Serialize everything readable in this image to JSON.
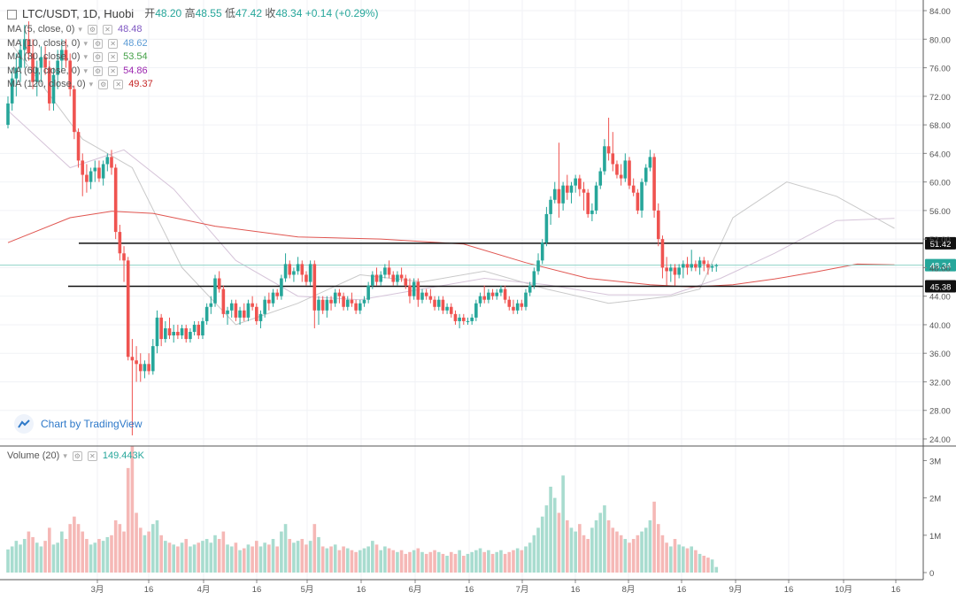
{
  "header": {
    "symbol_title": "LTC/USDT, 1D, Huobi",
    "open_label": "开",
    "open": "48.20",
    "high_label": "高",
    "high": "48.55",
    "low_label": "低",
    "low": "47.42",
    "close_label": "收",
    "close": "48.34",
    "change": "+0.14 (+0.29%)"
  },
  "moving_averages": [
    {
      "label": "MA (5, close, 0)",
      "value": "48.48",
      "color": "#7e57c2"
    },
    {
      "label": "MA (10, close, 0)",
      "value": "48.62",
      "color": "#5b9bd5"
    },
    {
      "label": "MA (30, close, 0)",
      "value": "53.54",
      "color": "#43a047"
    },
    {
      "label": "MA (60, close, 0)",
      "value": "54.86",
      "color": "#9c27b0"
    },
    {
      "label": "MA (120, close, 0)",
      "value": "49.37",
      "color": "#c62828"
    }
  ],
  "volume": {
    "label": "Volume (20)",
    "value": "149.443K"
  },
  "watermark": "Chart by TradingView",
  "colors": {
    "up": "#26a69a",
    "down": "#ef5350",
    "up_vol": "#a8dccf",
    "down_vol": "#f5b8b6",
    "grid": "#e0e3eb"
  },
  "chart_data": {
    "type": "candlestick",
    "symbol": "LTC/USDT",
    "interval": "1D",
    "price_axis": {
      "ticks": [
        "84.00",
        "80.00",
        "76.00",
        "72.00",
        "68.00",
        "64.00",
        "60.00",
        "56.00",
        "52.00",
        "48.00",
        "44.00",
        "40.00",
        "36.00",
        "32.00",
        "28.00",
        "24.00"
      ],
      "range": [
        24,
        84.5
      ]
    },
    "volume_axis": {
      "ticks": [
        "3M",
        "2M",
        "1M",
        "0"
      ],
      "range": [
        0,
        3.2
      ]
    },
    "time_axis": {
      "ticks": [
        "3月",
        "16",
        "4月",
        "16",
        "5月",
        "16",
        "6月",
        "16",
        "7月",
        "16",
        "8月",
        "16",
        "9月",
        "16",
        "10月",
        "16"
      ]
    },
    "horizontal_lines": [
      51.42,
      45.38
    ],
    "horizontal_line_labels": [
      "51.42",
      "45.38"
    ],
    "last_price": 48.34,
    "last_price_label": "48.34",
    "ma120_path": [
      [
        0,
        51.5
      ],
      [
        15,
        55.0
      ],
      [
        25,
        55.9
      ],
      [
        35,
        55.6
      ],
      [
        50,
        53.8
      ],
      [
        70,
        52.3
      ],
      [
        90,
        52.0
      ],
      [
        110,
        51.3
      ],
      [
        125,
        48.7
      ],
      [
        140,
        46.5
      ],
      [
        155,
        45.6
      ],
      [
        165,
        45.3
      ],
      [
        175,
        45.6
      ],
      [
        185,
        46.4
      ],
      [
        195,
        47.4
      ],
      [
        205,
        48.5
      ],
      [
        214,
        48.4
      ]
    ],
    "ma60_path": [
      [
        0,
        70
      ],
      [
        15,
        62
      ],
      [
        28,
        64.5
      ],
      [
        40,
        59
      ],
      [
        55,
        49
      ],
      [
        70,
        44
      ],
      [
        85,
        43.5
      ],
      [
        100,
        45
      ],
      [
        115,
        46.5
      ],
      [
        130,
        45.6
      ],
      [
        145,
        44.2
      ],
      [
        160,
        44.2
      ],
      [
        172,
        46.5
      ],
      [
        185,
        50
      ],
      [
        200,
        54.6
      ],
      [
        214,
        54.9
      ]
    ],
    "ma30_path": [
      [
        0,
        80
      ],
      [
        18,
        66
      ],
      [
        30,
        62
      ],
      [
        42,
        48
      ],
      [
        55,
        40
      ],
      [
        70,
        43
      ],
      [
        85,
        47
      ],
      [
        100,
        46
      ],
      [
        115,
        47.5
      ],
      [
        130,
        45
      ],
      [
        145,
        43
      ],
      [
        160,
        44
      ],
      [
        167,
        45
      ],
      [
        175,
        55
      ],
      [
        188,
        60
      ],
      [
        200,
        58
      ],
      [
        214,
        53.5
      ]
    ],
    "ohlc": [
      [
        68.0,
        72.0,
        67.5,
        71.0
      ],
      [
        71.0,
        76.0,
        70.0,
        74.5
      ],
      [
        74.5,
        78.0,
        72.0,
        76.0
      ],
      [
        76.0,
        80.0,
        74.0,
        78.5
      ],
      [
        78.5,
        82.0,
        76.0,
        80.0
      ],
      [
        80.0,
        82.5,
        77.0,
        78.0
      ],
      [
        78.0,
        80.0,
        73.0,
        74.0
      ],
      [
        74.0,
        77.0,
        72.0,
        76.0
      ],
      [
        76.0,
        79.0,
        74.0,
        77.5
      ],
      [
        77.5,
        79.0,
        75.0,
        76.0
      ],
      [
        76.0,
        77.0,
        70.0,
        71.0
      ],
      [
        71.0,
        76.0,
        70.0,
        75.0
      ],
      [
        75.0,
        78.5,
        73.0,
        77.0
      ],
      [
        77.0,
        80.0,
        75.5,
        78.5
      ],
      [
        78.5,
        80.0,
        76.0,
        77.0
      ],
      [
        77.0,
        78.0,
        72.0,
        73.0
      ],
      [
        73.0,
        73.5,
        66.0,
        67.0
      ],
      [
        67.0,
        67.5,
        62.0,
        63.0
      ],
      [
        63.0,
        64.0,
        58.0,
        61.0
      ],
      [
        61.0,
        62.5,
        58.5,
        60.0
      ],
      [
        60.0,
        62.0,
        59.0,
        61.5
      ],
      [
        61.5,
        63.0,
        60.0,
        62.0
      ],
      [
        62.0,
        63.0,
        60.0,
        60.5
      ],
      [
        60.5,
        63.0,
        59.5,
        62.5
      ],
      [
        62.5,
        64.0,
        61.5,
        63.5
      ],
      [
        63.5,
        64.5,
        61.0,
        62.0
      ],
      [
        62.0,
        62.5,
        52.0,
        53.0
      ],
      [
        53.0,
        54.0,
        49.0,
        50.0
      ],
      [
        50.0,
        51.0,
        46.0,
        49.0
      ],
      [
        49.0,
        49.5,
        35.0,
        35.5
      ],
      [
        35.5,
        38.0,
        24.5,
        35.0
      ],
      [
        35.0,
        37.0,
        32.0,
        34.5
      ],
      [
        34.5,
        36.0,
        32.0,
        33.5
      ],
      [
        33.5,
        35.0,
        32.5,
        34.5
      ],
      [
        34.5,
        36.0,
        33.0,
        33.5
      ],
      [
        33.5,
        38.0,
        33.0,
        37.0
      ],
      [
        37.0,
        42.0,
        36.0,
        41.0
      ],
      [
        41.0,
        41.5,
        37.0,
        38.0
      ],
      [
        38.0,
        40.5,
        37.5,
        39.5
      ],
      [
        39.5,
        41.0,
        38.0,
        38.5
      ],
      [
        38.5,
        40.0,
        37.5,
        39.0
      ],
      [
        39.0,
        40.0,
        38.0,
        38.5
      ],
      [
        38.5,
        40.0,
        38.0,
        39.5
      ],
      [
        39.5,
        40.0,
        37.5,
        38.0
      ],
      [
        38.0,
        39.5,
        37.5,
        39.0
      ],
      [
        39.0,
        40.5,
        38.5,
        40.0
      ],
      [
        40.0,
        40.5,
        38.0,
        38.5
      ],
      [
        38.5,
        41.0,
        38.0,
        40.5
      ],
      [
        40.5,
        43.0,
        40.0,
        42.5
      ],
      [
        42.5,
        44.0,
        41.5,
        43.0
      ],
      [
        43.0,
        47.0,
        42.5,
        46.5
      ],
      [
        46.5,
        47.5,
        44.5,
        45.0
      ],
      [
        45.0,
        45.5,
        41.0,
        41.5
      ],
      [
        41.5,
        42.5,
        40.0,
        42.0
      ],
      [
        42.0,
        43.5,
        41.0,
        43.0
      ],
      [
        43.0,
        43.5,
        40.5,
        41.0
      ],
      [
        41.0,
        42.5,
        40.0,
        42.0
      ],
      [
        42.0,
        43.0,
        40.5,
        41.0
      ],
      [
        41.0,
        43.5,
        40.5,
        43.0
      ],
      [
        43.0,
        44.0,
        42.0,
        42.5
      ],
      [
        42.5,
        43.0,
        40.0,
        40.5
      ],
      [
        40.5,
        42.0,
        39.5,
        41.5
      ],
      [
        41.5,
        44.0,
        41.0,
        43.5
      ],
      [
        43.5,
        44.5,
        42.0,
        43.0
      ],
      [
        43.0,
        45.0,
        42.5,
        44.5
      ],
      [
        44.5,
        45.0,
        43.5,
        44.0
      ],
      [
        44.0,
        47.0,
        43.5,
        46.5
      ],
      [
        46.5,
        50.0,
        46.0,
        48.5
      ],
      [
        48.5,
        49.0,
        46.5,
        47.0
      ],
      [
        47.0,
        48.0,
        46.0,
        47.5
      ],
      [
        47.5,
        49.5,
        47.0,
        48.5
      ],
      [
        48.5,
        49.0,
        46.0,
        47.0
      ],
      [
        47.0,
        47.5,
        45.5,
        46.0
      ],
      [
        46.0,
        49.0,
        45.5,
        48.5
      ],
      [
        48.5,
        49.0,
        39.5,
        42.0
      ],
      [
        42.0,
        44.0,
        40.0,
        43.5
      ],
      [
        43.5,
        44.0,
        41.5,
        42.0
      ],
      [
        42.0,
        44.0,
        41.0,
        43.5
      ],
      [
        43.5,
        44.0,
        42.0,
        43.0
      ],
      [
        43.0,
        45.0,
        42.5,
        44.5
      ],
      [
        44.5,
        45.0,
        43.0,
        44.0
      ],
      [
        44.0,
        44.5,
        42.0,
        42.5
      ],
      [
        42.5,
        44.0,
        42.0,
        43.5
      ],
      [
        43.5,
        44.5,
        42.5,
        43.0
      ],
      [
        43.0,
        43.5,
        41.5,
        42.0
      ],
      [
        42.0,
        43.5,
        41.5,
        43.0
      ],
      [
        43.0,
        44.0,
        42.5,
        43.5
      ],
      [
        43.5,
        46.0,
        43.0,
        45.5
      ],
      [
        45.5,
        47.5,
        45.0,
        47.0
      ],
      [
        47.0,
        48.0,
        45.5,
        46.0
      ],
      [
        46.0,
        47.5,
        45.5,
        47.0
      ],
      [
        47.0,
        48.5,
        46.5,
        48.0
      ],
      [
        48.0,
        49.0,
        46.5,
        47.0
      ],
      [
        47.0,
        47.5,
        45.5,
        46.0
      ],
      [
        46.0,
        47.5,
        45.5,
        47.0
      ],
      [
        47.0,
        48.0,
        46.0,
        46.5
      ],
      [
        46.5,
        47.0,
        45.0,
        45.5
      ],
      [
        45.5,
        46.5,
        43.0,
        44.0
      ],
      [
        44.0,
        46.5,
        43.5,
        46.0
      ],
      [
        46.0,
        46.5,
        42.5,
        43.5
      ],
      [
        43.5,
        45.0,
        43.0,
        44.5
      ],
      [
        44.5,
        45.0,
        43.5,
        44.0
      ],
      [
        44.0,
        45.0,
        43.0,
        43.5
      ],
      [
        43.5,
        44.0,
        42.0,
        42.5
      ],
      [
        42.5,
        44.0,
        42.0,
        43.5
      ],
      [
        43.5,
        44.0,
        41.5,
        42.0
      ],
      [
        42.0,
        43.0,
        41.5,
        42.5
      ],
      [
        42.5,
        43.0,
        41.0,
        41.5
      ],
      [
        41.5,
        42.0,
        40.0,
        40.5
      ],
      [
        40.5,
        41.5,
        39.5,
        41.0
      ],
      [
        41.0,
        41.5,
        40.0,
        40.5
      ],
      [
        40.5,
        41.0,
        40.0,
        40.5
      ],
      [
        40.5,
        41.5,
        40.0,
        41.0
      ],
      [
        41.0,
        43.5,
        40.5,
        43.0
      ],
      [
        43.0,
        44.5,
        42.5,
        44.0
      ],
      [
        44.0,
        45.5,
        43.0,
        43.5
      ],
      [
        43.5,
        45.0,
        43.0,
        44.5
      ],
      [
        44.5,
        45.0,
        43.5,
        44.0
      ],
      [
        44.0,
        45.0,
        43.5,
        44.5
      ],
      [
        44.5,
        45.5,
        44.0,
        45.0
      ],
      [
        45.0,
        45.5,
        43.0,
        43.5
      ],
      [
        43.5,
        44.0,
        42.0,
        42.5
      ],
      [
        42.5,
        43.5,
        41.5,
        42.0
      ],
      [
        42.0,
        43.5,
        41.5,
        43.0
      ],
      [
        43.0,
        43.5,
        42.0,
        42.5
      ],
      [
        42.5,
        45.0,
        42.0,
        44.5
      ],
      [
        44.5,
        46.0,
        44.0,
        45.5
      ],
      [
        45.5,
        48.0,
        45.0,
        47.5
      ],
      [
        47.5,
        50.0,
        47.0,
        49.0
      ],
      [
        49.0,
        52.0,
        48.5,
        51.5
      ],
      [
        51.5,
        56.5,
        51.0,
        55.5
      ],
      [
        55.5,
        58.0,
        54.0,
        57.5
      ],
      [
        57.5,
        60.0,
        57.0,
        59.0
      ],
      [
        59.0,
        65.5,
        55.0,
        57.0
      ],
      [
        57.0,
        60.0,
        56.0,
        59.5
      ],
      [
        59.5,
        61.0,
        57.5,
        58.5
      ],
      [
        58.5,
        60.0,
        57.0,
        59.5
      ],
      [
        59.5,
        61.0,
        58.5,
        60.5
      ],
      [
        60.5,
        61.0,
        58.0,
        59.0
      ],
      [
        59.0,
        60.0,
        56.0,
        58.5
      ],
      [
        58.5,
        59.0,
        55.0,
        55.5
      ],
      [
        55.5,
        57.0,
        54.5,
        56.0
      ],
      [
        56.0,
        60.0,
        55.5,
        59.5
      ],
      [
        59.5,
        62.0,
        59.0,
        61.5
      ],
      [
        61.5,
        66.0,
        61.0,
        65.0
      ],
      [
        65.0,
        69.0,
        63.0,
        64.0
      ],
      [
        64.0,
        67.0,
        61.5,
        62.5
      ],
      [
        62.5,
        63.0,
        60.5,
        61.0
      ],
      [
        61.0,
        62.5,
        59.5,
        60.5
      ],
      [
        60.5,
        64.0,
        60.0,
        63.0
      ],
      [
        63.0,
        63.5,
        59.0,
        59.5
      ],
      [
        59.5,
        60.5,
        58.0,
        58.5
      ],
      [
        58.5,
        59.0,
        55.5,
        56.0
      ],
      [
        56.0,
        60.5,
        55.0,
        60.0
      ],
      [
        60.0,
        62.5,
        59.5,
        62.0
      ],
      [
        62.0,
        64.5,
        61.5,
        63.5
      ],
      [
        63.5,
        64.0,
        55.0,
        56.0
      ],
      [
        56.0,
        57.0,
        51.0,
        52.0
      ],
      [
        52.0,
        52.5,
        46.5,
        48.0
      ],
      [
        48.0,
        49.5,
        45.5,
        47.5
      ],
      [
        47.5,
        48.5,
        46.0,
        48.0
      ],
      [
        48.0,
        48.5,
        45.5,
        47.0
      ],
      [
        47.0,
        48.5,
        46.5,
        48.0
      ],
      [
        48.0,
        49.0,
        46.5,
        48.5
      ],
      [
        48.5,
        49.5,
        47.0,
        48.0
      ],
      [
        48.0,
        50.5,
        47.5,
        48.5
      ],
      [
        48.5,
        49.0,
        47.5,
        48.0
      ],
      [
        48.0,
        49.5,
        47.0,
        49.0
      ],
      [
        49.0,
        49.5,
        47.5,
        48.5
      ],
      [
        48.5,
        49.0,
        47.0,
        48.0
      ],
      [
        48.0,
        48.5,
        47.42,
        48.2
      ],
      [
        48.2,
        48.55,
        47.42,
        48.34
      ]
    ],
    "volumes": [
      0.62,
      0.7,
      0.85,
      0.75,
      0.9,
      1.1,
      0.95,
      0.8,
      0.7,
      0.85,
      1.2,
      0.75,
      0.8,
      1.1,
      0.9,
      1.3,
      1.5,
      1.3,
      1.1,
      0.9,
      0.75,
      0.8,
      0.9,
      0.85,
      0.95,
      1.0,
      1.4,
      1.3,
      1.1,
      2.8,
      3.4,
      1.6,
      1.2,
      1.0,
      1.1,
      1.3,
      1.4,
      1.0,
      0.85,
      0.8,
      0.75,
      0.7,
      0.8,
      0.9,
      0.7,
      0.75,
      0.8,
      0.85,
      0.9,
      0.8,
      1.0,
      0.9,
      1.1,
      0.75,
      0.7,
      0.8,
      0.6,
      0.65,
      0.75,
      0.7,
      0.85,
      0.7,
      0.8,
      0.75,
      0.9,
      0.7,
      1.1,
      1.3,
      0.9,
      0.8,
      0.85,
      0.9,
      0.75,
      0.85,
      1.3,
      0.95,
      0.7,
      0.65,
      0.7,
      0.75,
      0.6,
      0.7,
      0.65,
      0.6,
      0.55,
      0.6,
      0.65,
      0.7,
      0.85,
      0.75,
      0.6,
      0.7,
      0.65,
      0.6,
      0.55,
      0.6,
      0.5,
      0.55,
      0.6,
      0.65,
      0.55,
      0.5,
      0.55,
      0.6,
      0.55,
      0.5,
      0.45,
      0.55,
      0.5,
      0.6,
      0.45,
      0.5,
      0.55,
      0.6,
      0.65,
      0.55,
      0.6,
      0.5,
      0.55,
      0.6,
      0.5,
      0.55,
      0.6,
      0.65,
      0.6,
      0.7,
      0.8,
      1.0,
      1.2,
      1.5,
      1.8,
      2.3,
      2.0,
      1.6,
      2.6,
      1.4,
      1.2,
      1.1,
      1.3,
      1.0,
      0.9,
      1.2,
      1.4,
      1.6,
      1.8,
      1.4,
      1.2,
      1.1,
      1.0,
      0.9,
      0.8,
      0.9,
      1.0,
      1.1,
      1.2,
      1.4,
      1.9,
      1.3,
      1.0,
      0.8,
      0.7,
      0.9,
      0.75,
      0.7,
      0.65,
      0.7,
      0.6,
      0.5,
      0.45,
      0.4,
      0.35,
      0.15
    ]
  }
}
